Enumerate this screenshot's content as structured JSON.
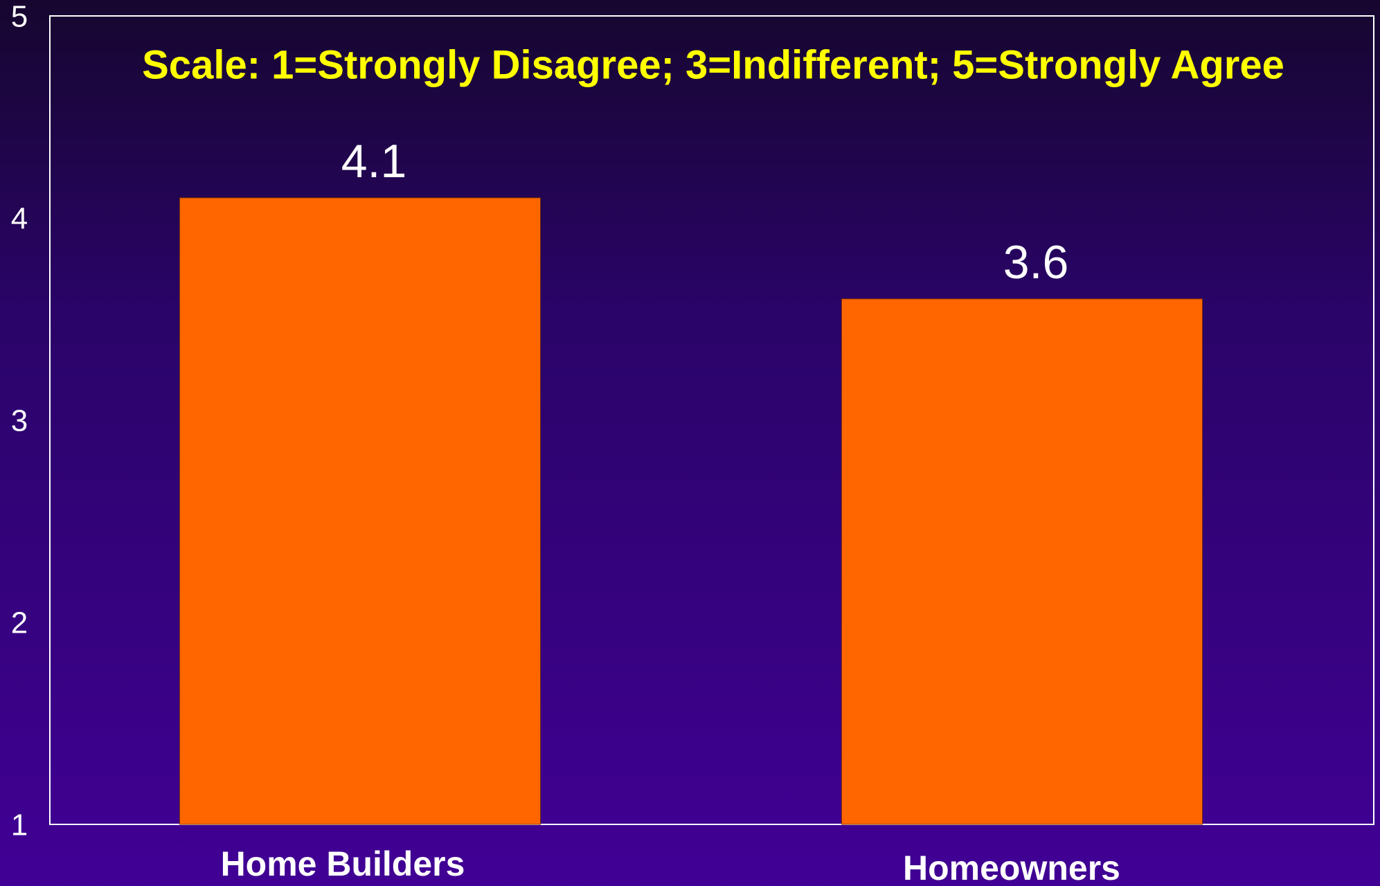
{
  "chart_data": {
    "type": "bar",
    "title": "Scale: 1=Strongly Disagree; 3=Indifferent; 5=Strongly Agree",
    "categories": [
      "Home Builders",
      "Homeowners"
    ],
    "values": [
      4.1,
      3.6
    ],
    "color": "#ff6600",
    "ylim": [
      1,
      5
    ],
    "yticks": [
      1,
      2,
      3,
      4,
      5
    ],
    "grid": false
  }
}
